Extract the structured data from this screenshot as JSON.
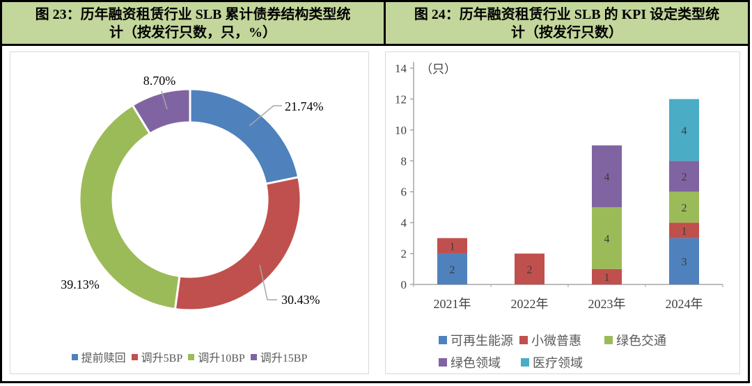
{
  "header": {
    "left_title_line1": "图 23：历年融资租赁行业 SLB 累计债券结构类型统",
    "left_title_line2": "计（按发行只数，只，%）",
    "right_title_line1": "图 24：历年融资租赁行业 SLB 的 KPI 设定类型统",
    "right_title_line2": "计（按发行只数）"
  },
  "colors": {
    "header_bg": "#c3d69b",
    "frame_border": "#000000",
    "panel_border": "#d9d9d9",
    "axis_gray": "#a6a6a6",
    "leader_gray": "#a6a6a6",
    "tick_label": "#3f3f3f",
    "data_label": "#3b3b3b",
    "legend_text": "#595959",
    "blue": "#4f81bd",
    "red": "#c0504d",
    "green": "#9bbb59",
    "purple": "#8064a2",
    "teal": "#4bacc6"
  },
  "chart_data": [
    {
      "type": "pie",
      "subtype": "donut",
      "title": "历年融资租赁行业SLB累计债券结构类型统计（按发行只数，只，%）",
      "categories": [
        "提前赎回",
        "调升5BP",
        "调升10BP",
        "调升15BP"
      ],
      "values": [
        21.74,
        30.43,
        39.13,
        8.7
      ],
      "value_labels": [
        "21.74%",
        "30.43%",
        "39.13%",
        "8.70%"
      ],
      "colors": [
        "#4f81bd",
        "#c0504d",
        "#9bbb59",
        "#8064a2"
      ],
      "start_angle": "top",
      "direction": "clockwise",
      "legend_position": "bottom"
    },
    {
      "type": "bar",
      "subtype": "stacked",
      "title": "历年融资租赁行业SLB的KPI设定类型统计（按发行只数）",
      "categories": [
        "2021年",
        "2022年",
        "2023年",
        "2024年"
      ],
      "series": [
        {
          "name": "可再生能源",
          "color": "#4f81bd",
          "values": [
            2,
            0,
            0,
            3
          ]
        },
        {
          "name": "小微普惠",
          "color": "#c0504d",
          "values": [
            1,
            2,
            1,
            1
          ]
        },
        {
          "name": "绿色交通",
          "color": "#9bbb59",
          "values": [
            0,
            0,
            4,
            2
          ]
        },
        {
          "name": "绿色领域",
          "color": "#8064a2",
          "values": [
            0,
            0,
            4,
            2
          ]
        },
        {
          "name": "医疗领域",
          "color": "#4bacc6",
          "values": [
            0,
            0,
            0,
            4
          ]
        }
      ],
      "totals": [
        3,
        2,
        9,
        12
      ],
      "ylabel": "（只）",
      "ylim": [
        0,
        14
      ],
      "ytick_step": 2,
      "grid": false,
      "legend_position": "bottom",
      "legend_rows": [
        [
          "可再生能源",
          "小微普惠",
          "绿色交通"
        ],
        [
          "绿色领域",
          "医疗领域"
        ]
      ]
    }
  ]
}
